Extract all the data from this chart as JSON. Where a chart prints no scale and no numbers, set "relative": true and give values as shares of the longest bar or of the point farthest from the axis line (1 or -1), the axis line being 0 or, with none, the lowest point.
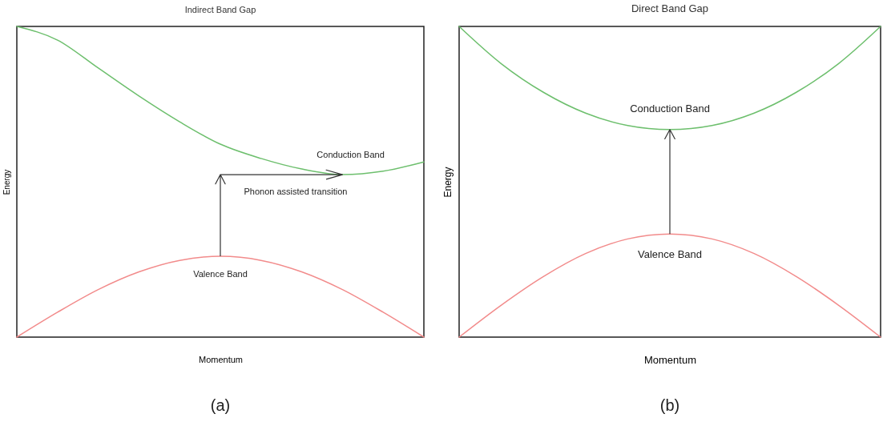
{
  "chart_data": [
    {
      "type": "line",
      "title": "Indirect Band Gap",
      "xlabel": "Momentum",
      "ylabel": "Energy",
      "relative": true,
      "legend": false,
      "categories": [
        null,
        null,
        null,
        null,
        null,
        null,
        null,
        null,
        null,
        null,
        null
      ],
      "series": [
        {
          "name": "Conduction Band",
          "color": "#6dbf6d",
          "values": [
            1.0,
            0.956,
            0.866,
            0.776,
            0.693,
            0.621,
            0.575,
            0.541,
            0.523,
            0.534,
            0.564
          ]
        },
        {
          "name": "Valence Band",
          "color": "#f28b8b",
          "values": [
            0,
            0.08,
            0.153,
            0.21,
            0.247,
            0.26,
            0.247,
            0.21,
            0.153,
            0.08,
            0
          ]
        }
      ],
      "annotations": [
        "Phonon assisted transition",
        "(a)"
      ]
    },
    {
      "type": "line",
      "title": "Direct Band Gap",
      "xlabel": "Momentum",
      "ylabel": "Energy",
      "relative": true,
      "legend": false,
      "categories": [
        null,
        null,
        null,
        null,
        null,
        null,
        null,
        null,
        null,
        null,
        null
      ],
      "series": [
        {
          "name": "Conduction Band",
          "color": "#6dbf6d",
          "values": [
            1.0,
            0.88,
            0.788,
            0.721,
            0.681,
            0.668,
            0.681,
            0.721,
            0.788,
            0.88,
            1.0
          ]
        },
        {
          "name": "Valence Band",
          "color": "#f28b8b",
          "values": [
            0,
            0.103,
            0.195,
            0.269,
            0.316,
            0.332,
            0.316,
            0.269,
            0.195,
            0.103,
            0
          ]
        }
      ],
      "annotations": [
        "(b)"
      ]
    }
  ]
}
